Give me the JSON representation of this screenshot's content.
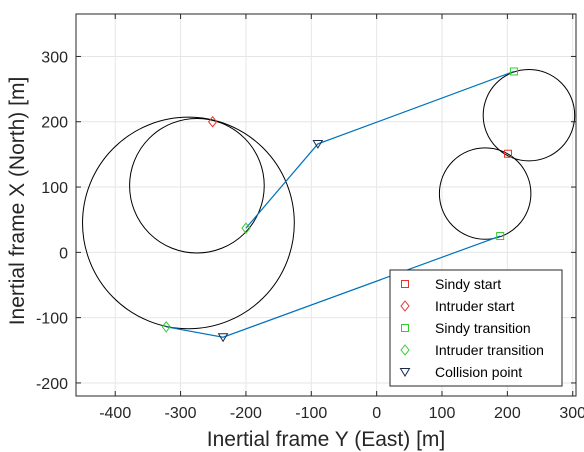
{
  "chart_data": {
    "type": "scatter",
    "title": "",
    "xlabel": "Inertial frame Y (East) [m]",
    "ylabel": "Inertial frame X (North) [m]",
    "xlim": [
      -460,
      305
    ],
    "ylim": [
      -220,
      365
    ],
    "xticks": [
      -400,
      -300,
      -200,
      -100,
      0,
      100,
      200,
      300
    ],
    "yticks": [
      -200,
      -100,
      0,
      100,
      200,
      300
    ],
    "xtick_labels": [
      "-400",
      "-300",
      "-200",
      "-100",
      "0",
      "100",
      "200",
      "300"
    ],
    "ytick_labels": [
      "-200",
      "-100",
      "0",
      "100",
      "200",
      "300"
    ],
    "grid": true,
    "legend_position": "bottom-right",
    "circles": [
      {
        "cx": -275,
        "cy": 102,
        "r": 103
      },
      {
        "cx": -288,
        "cy": 45,
        "r": 162
      },
      {
        "cx": 233,
        "cy": 210,
        "r": 70
      },
      {
        "cx": 166,
        "cy": 90,
        "r": 70
      }
    ],
    "paths": [
      {
        "color": "#0072BD",
        "points": [
          [
            210,
            277
          ],
          [
            -90,
            166
          ],
          [
            -200,
            37
          ]
        ]
      },
      {
        "color": "#0072BD",
        "points": [
          [
            -322,
            -114
          ],
          [
            -235,
            -130
          ],
          [
            189,
            25
          ]
        ]
      }
    ],
    "series": [
      {
        "name": "Sindy start",
        "marker": "square",
        "color": "#e8332a",
        "points": [
          [
            201,
            151
          ]
        ]
      },
      {
        "name": "Intruder start",
        "marker": "diamond",
        "color": "#e8332a",
        "points": [
          [
            -251,
            200
          ]
        ]
      },
      {
        "name": "Sindy transition",
        "marker": "square",
        "color": "#33cc33",
        "points": [
          [
            210,
            277
          ],
          [
            189,
            25
          ]
        ]
      },
      {
        "name": "Intruder transition",
        "marker": "diamond",
        "color": "#33cc33",
        "points": [
          [
            -200,
            37
          ],
          [
            -322,
            -114
          ]
        ]
      },
      {
        "name": "Collision point",
        "marker": "triangle-down",
        "color": "#1a2a4a",
        "points": [
          [
            -90,
            166
          ],
          [
            -235,
            -130
          ]
        ]
      }
    ]
  }
}
